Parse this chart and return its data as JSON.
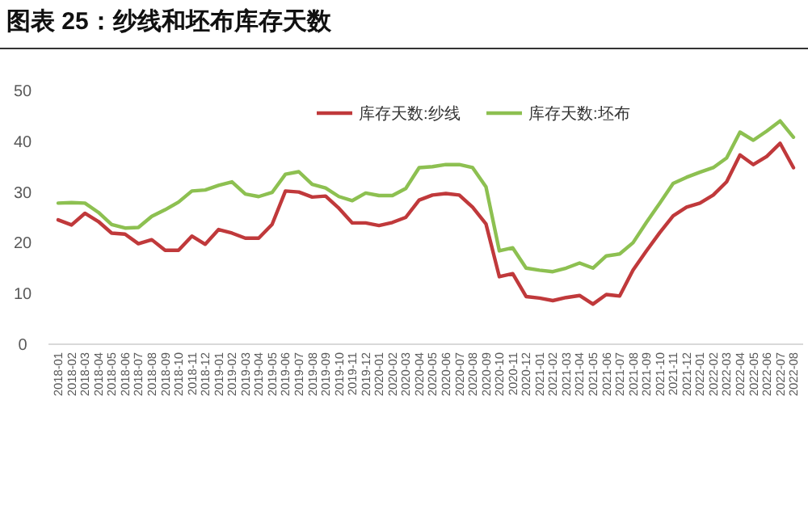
{
  "chart_data": {
    "type": "line",
    "title": "图表 25：纱线和坯布库存天数",
    "categories": [
      "2018-01",
      "2018-02",
      "2018-03",
      "2018-04",
      "2018-05",
      "2018-06",
      "2018-07",
      "2018-08",
      "2018-09",
      "2018-10",
      "2018-11",
      "2018-12",
      "2019-01",
      "2019-02",
      "2019-03",
      "2019-04",
      "2019-05",
      "2019-06",
      "2019-07",
      "2019-08",
      "2019-09",
      "2019-10",
      "2019-11",
      "2019-12",
      "2020-01",
      "2020-02",
      "2020-03",
      "2020-04",
      "2020-05",
      "2020-06",
      "2020-07",
      "2020-08",
      "2020-09",
      "2020-10",
      "2020-11",
      "2020-12",
      "2021-01",
      "2021-02",
      "2021-03",
      "2021-04",
      "2021-05",
      "2021-06",
      "2021-07",
      "2021-08",
      "2021-09",
      "2021-10",
      "2021-11",
      "2021-12",
      "2022-01",
      "2022-02",
      "2022-03",
      "2022-04",
      "2022-05",
      "2022-06",
      "2022-07",
      "2022-08"
    ],
    "series": [
      {
        "name": "库存天数:纱线",
        "color": "#c0393b",
        "values": [
          24.5,
          23.5,
          25.8,
          24.2,
          21.9,
          21.7,
          19.8,
          20.6,
          18.5,
          18.5,
          21.3,
          19.7,
          22.6,
          21.9,
          20.9,
          20.9,
          23.6,
          30.2,
          30,
          29,
          29.2,
          26.8,
          23.9,
          23.9,
          23.4,
          24,
          25,
          28.4,
          29.4,
          29.7,
          29.4,
          27,
          23.7,
          13.3,
          13.9,
          9.4,
          9.1,
          8.6,
          9.2,
          9.6,
          7.9,
          9.8,
          9.5,
          14.6,
          18.4,
          22,
          25.3,
          27,
          27.8,
          29.4,
          32,
          37.3,
          35.4,
          37,
          39.6,
          34.8
        ]
      },
      {
        "name": "库存天数:坯布",
        "color": "#8dc051",
        "values": [
          27.8,
          27.9,
          27.8,
          26,
          23.6,
          22.9,
          23,
          25.2,
          26.5,
          28,
          30.2,
          30.4,
          31.3,
          32,
          29.6,
          29.1,
          29.9,
          33.5,
          34,
          31.5,
          30.8,
          29.1,
          28.3,
          29.8,
          29.3,
          29.3,
          30.7,
          34.8,
          35,
          35.4,
          35.4,
          34.8,
          31,
          18.4,
          19,
          15,
          14.6,
          14.3,
          15,
          16,
          15,
          17.4,
          17.8,
          20,
          24,
          27.8,
          31.7,
          32.9,
          33.9,
          34.8,
          36.7,
          41.8,
          40.2,
          42,
          44,
          40.8
        ]
      }
    ],
    "ylim": [
      0,
      50
    ],
    "yticks": [
      0,
      10,
      20,
      30,
      40,
      50
    ],
    "grid": false,
    "legend": "top right",
    "marker": "none",
    "line_style": "solid"
  }
}
